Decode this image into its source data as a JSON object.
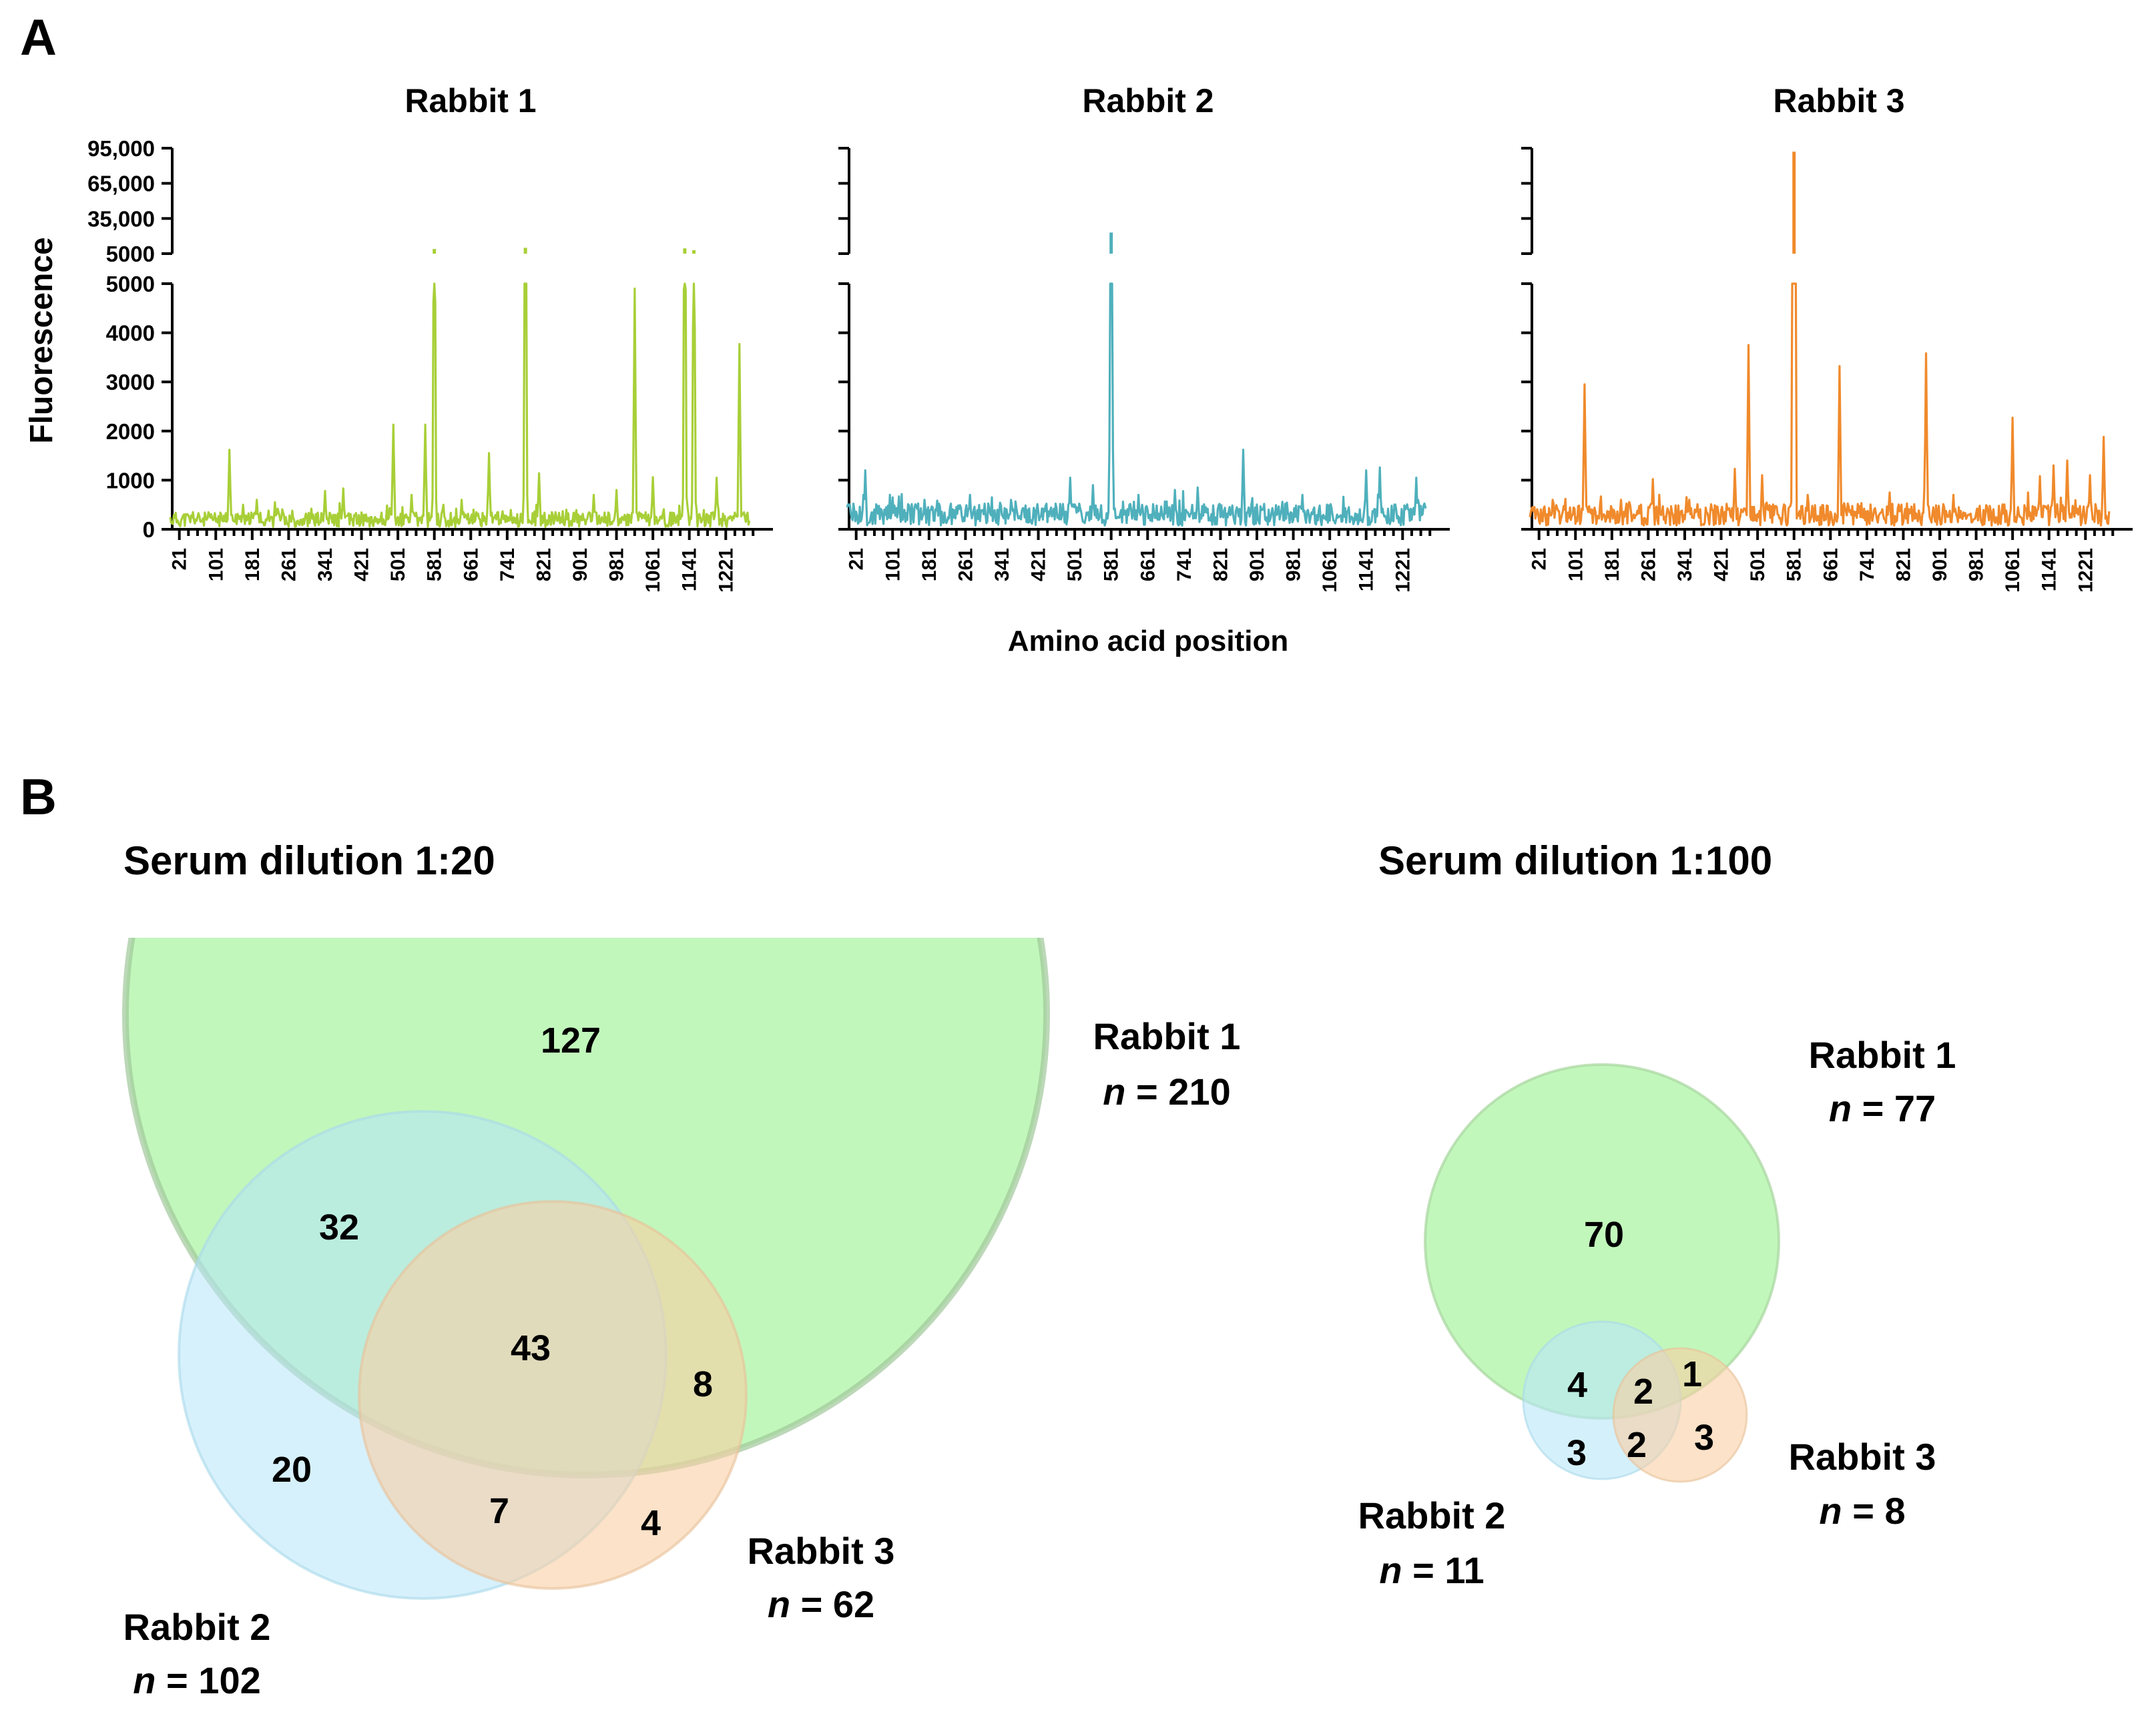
{
  "panel_labels": {
    "a": "A",
    "b": "B"
  },
  "chart_data": [
    {
      "type": "line",
      "title": "Rabbit 1",
      "color": "#a8cf38",
      "ylabel": "Fluorescence",
      "xlabel": "Amino acid position",
      "y_lower_ticks": [
        "0",
        "1000",
        "2000",
        "3000",
        "4000",
        "5000"
      ],
      "y_upper_ticks": [
        "5000",
        "35,000",
        "65,000",
        "95,000"
      ],
      "ylim_lower": [
        0,
        5000
      ],
      "ylim_upper": [
        5000,
        95000
      ],
      "x_ticks": [
        "21",
        "101",
        "181",
        "261",
        "341",
        "421",
        "501",
        "581",
        "661",
        "741",
        "821",
        "901",
        "981",
        "1061",
        "1141",
        "1221"
      ],
      "xlim": [
        1,
        1273
      ],
      "baseline": 200,
      "peaks": [
        [
          51,
          350
        ],
        [
          131,
          1620
        ],
        [
          161,
          500
        ],
        [
          191,
          600
        ],
        [
          231,
          550
        ],
        [
          311,
          420
        ],
        [
          341,
          780
        ],
        [
          381,
          830
        ],
        [
          451,
          250
        ],
        [
          491,
          2130
        ],
        [
          531,
          700
        ],
        [
          561,
          2130
        ],
        [
          581,
          9000
        ],
        [
          601,
          500
        ],
        [
          641,
          600
        ],
        [
          701,
          1550
        ],
        [
          781,
          10000
        ],
        [
          811,
          1140
        ],
        [
          871,
          400
        ],
        [
          931,
          700
        ],
        [
          981,
          800
        ],
        [
          1021,
          4900
        ],
        [
          1061,
          1060
        ],
        [
          1131,
          9500
        ],
        [
          1151,
          8000
        ],
        [
          1201,
          1050
        ],
        [
          1251,
          3770
        ]
      ]
    },
    {
      "type": "line",
      "title": "Rabbit 2",
      "color": "#4fb0bc",
      "ylabel": "Fluorescence",
      "xlabel": "Amino acid position",
      "y_lower_ticks": [
        "0",
        "1000",
        "2000",
        "3000",
        "4000",
        "5000"
      ],
      "y_upper_ticks": [
        "5000",
        "35,000",
        "65,000",
        "95,000"
      ],
      "ylim_lower": [
        0,
        5000
      ],
      "ylim_upper": [
        5000,
        95000
      ],
      "x_ticks": [
        "21",
        "101",
        "181",
        "261",
        "341",
        "421",
        "501",
        "581",
        "661",
        "741",
        "821",
        "901",
        "981",
        "1061",
        "1141",
        "1221"
      ],
      "xlim": [
        1,
        1273
      ],
      "baseline": 300,
      "peaks": [
        [
          41,
          1200
        ],
        [
          101,
          650
        ],
        [
          171,
          600
        ],
        [
          271,
          700
        ],
        [
          361,
          600
        ],
        [
          491,
          1050
        ],
        [
          541,
          900
        ],
        [
          581,
          23000
        ],
        [
          641,
          700
        ],
        [
          721,
          800
        ],
        [
          771,
          850
        ],
        [
          871,
          1620
        ],
        [
          1001,
          700
        ],
        [
          1141,
          1200
        ],
        [
          1171,
          1260
        ],
        [
          1251,
          1050
        ]
      ]
    },
    {
      "type": "line",
      "title": "Rabbit 3",
      "color": "#f08a2c",
      "ylabel": "Fluorescence",
      "xlabel": "Amino acid position",
      "y_lower_ticks": [
        "0",
        "1000",
        "2000",
        "3000",
        "4000",
        "5000"
      ],
      "y_upper_ticks": [
        "5000",
        "35,000",
        "65,000",
        "95,000"
      ],
      "ylim_lower": [
        0,
        5000
      ],
      "ylim_upper": [
        5000,
        95000
      ],
      "x_ticks": [
        "21",
        "101",
        "181",
        "261",
        "341",
        "421",
        "501",
        "581",
        "661",
        "741",
        "821",
        "901",
        "981",
        "1061",
        "1141",
        "1221"
      ],
      "xlim": [
        1,
        1273
      ],
      "baseline": 300,
      "peaks": [
        [
          51,
          600
        ],
        [
          121,
          2950
        ],
        [
          201,
          600
        ],
        [
          271,
          1020
        ],
        [
          351,
          600
        ],
        [
          451,
          1230
        ],
        [
          481,
          3750
        ],
        [
          511,
          1100
        ],
        [
          581,
          92000
        ],
        [
          611,
          700
        ],
        [
          681,
          3320
        ],
        [
          791,
          750
        ],
        [
          871,
          3580
        ],
        [
          931,
          700
        ],
        [
          1061,
          2270
        ],
        [
          1121,
          1080
        ],
        [
          1151,
          1300
        ],
        [
          1181,
          1400
        ],
        [
          1231,
          1100
        ],
        [
          1261,
          1880
        ]
      ]
    },
    {
      "type": "venn",
      "title": "Serum dilution 1:20",
      "sets": [
        {
          "name": "Rabbit 1",
          "n_label": "n",
          "n_value": "= 210",
          "color": "#9af28f"
        },
        {
          "name": "Rabbit 2",
          "n_label": "n",
          "n_value": "= 102",
          "color": "#b7e6f9"
        },
        {
          "name": "Rabbit 3",
          "n_label": "n",
          "n_value": "= 62",
          "color": "#f8cfa3"
        }
      ],
      "regions": {
        "only_1": "127",
        "r1_r2": "32",
        "all": "43",
        "r1_r3": "8",
        "only_2": "20",
        "r2_r3": "7",
        "only_3": "4"
      }
    },
    {
      "type": "venn",
      "title": "Serum dilution 1:100",
      "sets": [
        {
          "name": "Rabbit 1",
          "n_label": "n",
          "n_value": "= 77",
          "color": "#9af28f"
        },
        {
          "name": "Rabbit 2",
          "n_label": "n",
          "n_value": "= 11",
          "color": "#b7e6f9"
        },
        {
          "name": "Rabbit 3",
          "n_label": "n",
          "n_value": "= 8",
          "color": "#f8cfa3"
        }
      ],
      "regions": {
        "only_1": "70",
        "r1_r2": "4",
        "all": "2",
        "r1_r3": "1",
        "only_2": "3",
        "r2_r3": "2",
        "only_3": "3"
      }
    }
  ]
}
